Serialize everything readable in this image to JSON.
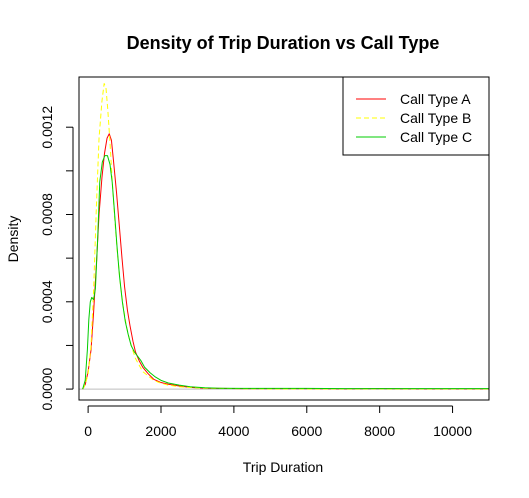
{
  "chart_data": {
    "type": "line",
    "title": "Density of Trip Duration vs Call Type",
    "xlabel": "Trip Duration",
    "ylabel": "Density",
    "xlim": [
      -250,
      11000
    ],
    "ylim": [
      -5e-05,
      0.00143
    ],
    "x_ticks": [
      0,
      2000,
      4000,
      6000,
      8000,
      10000
    ],
    "x_tick_labels": [
      "0",
      "2000",
      "4000",
      "6000",
      "8000",
      "10000"
    ],
    "y_ticks": [
      0,
      0.0004,
      0.0008,
      0.0012
    ],
    "y_tick_labels": [
      "0.0000",
      "0.0004",
      "0.0008",
      "0.0012"
    ],
    "y_minor_ticks": [
      0.0002,
      0.0006,
      0.001
    ],
    "grid": false,
    "legend_position": "top-right",
    "series": [
      {
        "name": "Call Type A",
        "color": "#ff0000",
        "dash": "solid",
        "x": [
          -150,
          -80,
          0,
          80,
          150,
          230,
          300,
          380,
          450,
          520,
          580,
          640,
          700,
          780,
          850,
          930,
          1000,
          1080,
          1150,
          1230,
          1300,
          1400,
          1500,
          1650,
          1800,
          2000,
          2200,
          2500,
          2800,
          3200,
          3600,
          4200,
          5000,
          6000,
          7000,
          8000,
          9000,
          10000,
          11000
        ],
        "y": [
          0,
          2e-05,
          8e-05,
          0.00018,
          0.00035,
          0.00058,
          0.0008,
          0.00097,
          0.00108,
          0.00115,
          0.00117,
          0.00114,
          0.00104,
          0.0009,
          0.00076,
          0.0006,
          0.00047,
          0.00036,
          0.00029,
          0.00022,
          0.00017,
          0.00013,
          0.0001,
          7e-05,
          4.5e-05,
          3e-05,
          2.2e-05,
          1.4e-05,
          8e-06,
          4e-06,
          3e-06,
          2e-06,
          2e-06,
          2e-06,
          1e-06,
          2e-06,
          1e-06,
          1e-06,
          1e-06
        ]
      },
      {
        "name": "Call Type B",
        "color": "#ffff00",
        "dash": "dashed",
        "x": [
          -150,
          -80,
          0,
          80,
          150,
          230,
          300,
          380,
          440,
          490,
          540,
          600,
          660,
          730,
          800,
          880,
          960,
          1050,
          1130,
          1220,
          1300,
          1400,
          1500,
          1650,
          1800,
          2000,
          2200,
          2500,
          2800,
          3200,
          3600,
          4200,
          5000,
          6000,
          7000,
          8000,
          9000,
          10000,
          11000
        ],
        "y": [
          0,
          2e-05,
          7e-05,
          0.0002,
          0.00045,
          0.00085,
          0.00115,
          0.00132,
          0.0014,
          0.00138,
          0.00128,
          0.00113,
          0.00096,
          0.00078,
          0.00063,
          0.00049,
          0.00038,
          0.00029,
          0.00023,
          0.00018,
          0.00014,
          0.00011,
          8e-05,
          6e-05,
          4e-05,
          2.7e-05,
          1.8e-05,
          1.1e-05,
          7e-06,
          4e-06,
          3e-06,
          2e-06,
          1e-06,
          1e-06,
          1e-06,
          1e-06,
          1e-06,
          1e-06,
          1e-06
        ]
      },
      {
        "name": "Call Type C",
        "color": "#00cc00",
        "dash": "solid",
        "x": [
          -150,
          -80,
          -20,
          20,
          60,
          100,
          150,
          200,
          260,
          320,
          390,
          460,
          530,
          600,
          660,
          720,
          790,
          860,
          940,
          1020,
          1100,
          1180,
          1270,
          1360,
          1450,
          1550,
          1700,
          1850,
          2000,
          2200,
          2500,
          2800,
          3200,
          3600,
          4200,
          5000,
          6000,
          7000,
          8000,
          9000,
          10000,
          11000
        ],
        "y": [
          0,
          4e-05,
          0.00018,
          0.00032,
          0.0004,
          0.00042,
          0.00041,
          0.00046,
          0.00068,
          0.00095,
          0.00104,
          0.00107,
          0.00107,
          0.00103,
          0.00095,
          0.00082,
          0.00066,
          0.00052,
          0.0004,
          0.00031,
          0.00025,
          0.0002,
          0.00017,
          0.00015,
          0.00013,
          0.0001,
          7.5e-05,
          5.5e-05,
          4e-05,
          2.8e-05,
          1.8e-05,
          1.1e-05,
          6e-06,
          4e-06,
          3e-06,
          3e-06,
          3e-06,
          2e-06,
          2e-06,
          2e-06,
          2e-06,
          2e-06
        ]
      }
    ]
  }
}
